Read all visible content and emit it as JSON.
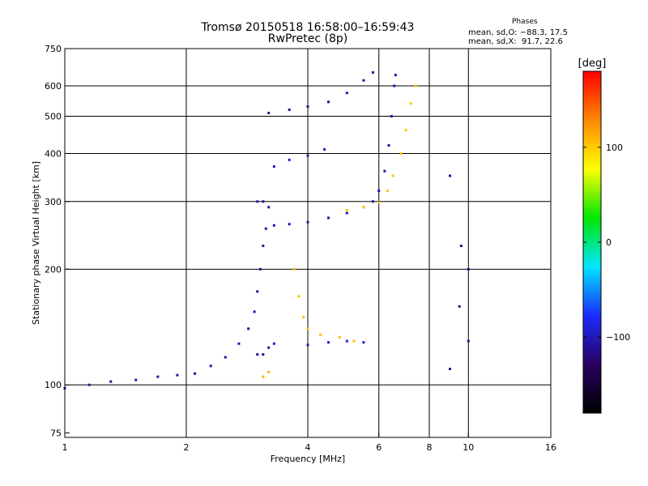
{
  "chart_data": {
    "type": "scatter",
    "title": "Tromsø 20150518 16:58:00–16:59:43",
    "subtitle": "RwPretec (8p)",
    "xlabel": "Frequency [MHz]",
    "ylabel": "Stationary phase Virtual Height [km]",
    "xscale": "log",
    "yscale": "log",
    "xlim": [
      1,
      16
    ],
    "ylim": [
      73,
      750
    ],
    "x_ticks": [
      1,
      2,
      4,
      6,
      8,
      10,
      16
    ],
    "x_tick_labels": [
      "1",
      "2",
      "4",
      "6",
      "8",
      "10",
      "16"
    ],
    "x_grid": [
      2,
      4,
      6,
      8,
      10
    ],
    "y_ticks": [
      75,
      100,
      200,
      300,
      400,
      500,
      600,
      750
    ],
    "y_tick_labels": [
      "75",
      "100",
      "200",
      "300",
      "400",
      "500",
      "600",
      "750"
    ],
    "y_grid": [
      100,
      200,
      300,
      400,
      500,
      600
    ],
    "grid": true,
    "colorbar": {
      "label": "[deg]",
      "ticks": [
        100,
        0,
        -100
      ],
      "tick_labels": [
        "100",
        "0",
        "−100"
      ],
      "range": [
        -180,
        180
      ],
      "colors": [
        "#000000",
        "#2a0060",
        "#1a2cff",
        "#00e6ff",
        "#00e600",
        "#ffff00",
        "#ff8800",
        "#ff0000"
      ]
    },
    "phases": {
      "header": "Phases",
      "o_line": "mean, sd,O: −88.3, 17.5",
      "x_line": "mean, sd,X:  91.7, 22.6"
    },
    "series": [
      {
        "phase": -105,
        "points": [
          [
            1.0,
            98
          ],
          [
            1.15,
            100
          ],
          [
            1.3,
            102
          ],
          [
            1.5,
            103
          ],
          [
            1.7,
            105
          ],
          [
            1.9,
            106
          ],
          [
            2.1,
            107
          ],
          [
            2.3,
            112
          ],
          [
            2.5,
            118
          ],
          [
            2.7,
            128
          ],
          [
            2.85,
            140
          ],
          [
            2.95,
            155
          ],
          [
            3.0,
            175
          ],
          [
            3.05,
            200
          ],
          [
            3.1,
            230
          ],
          [
            3.15,
            255
          ],
          [
            3.3,
            260
          ],
          [
            3.6,
            262
          ],
          [
            4.0,
            265
          ],
          [
            4.5,
            272
          ],
          [
            5.0,
            280
          ],
          [
            5.5,
            290
          ],
          [
            5.8,
            300
          ],
          [
            6.0,
            320
          ],
          [
            6.2,
            360
          ],
          [
            6.35,
            420
          ],
          [
            6.45,
            500
          ],
          [
            6.55,
            600
          ],
          [
            6.6,
            640
          ]
        ]
      },
      {
        "phase": -110,
        "points": [
          [
            3.0,
            120
          ],
          [
            3.0,
            300
          ],
          [
            3.1,
            120
          ],
          [
            3.1,
            300
          ],
          [
            3.2,
            125
          ],
          [
            3.2,
            290
          ]
        ]
      },
      {
        "phase": -95,
        "points": [
          [
            3.3,
            128
          ],
          [
            4.0,
            127
          ],
          [
            4.5,
            129
          ],
          [
            5.0,
            130
          ],
          [
            5.5,
            129
          ]
        ]
      },
      {
        "phase": -105,
        "points": [
          [
            3.2,
            510
          ],
          [
            3.6,
            520
          ],
          [
            4.0,
            530
          ],
          [
            4.5,
            545
          ],
          [
            5.0,
            575
          ],
          [
            5.5,
            620
          ],
          [
            5.8,
            650
          ]
        ]
      },
      {
        "phase": -100,
        "points": [
          [
            3.3,
            370
          ],
          [
            3.6,
            385
          ],
          [
            4.0,
            395
          ],
          [
            4.4,
            410
          ]
        ]
      },
      {
        "phase": 100,
        "points": [
          [
            5.0,
            285
          ],
          [
            5.5,
            290
          ],
          [
            6.0,
            298
          ],
          [
            6.3,
            320
          ],
          [
            6.5,
            350
          ],
          [
            6.8,
            400
          ],
          [
            7.0,
            460
          ],
          [
            7.2,
            540
          ],
          [
            7.4,
            600
          ]
        ]
      },
      {
        "phase": 105,
        "points": [
          [
            3.7,
            200
          ],
          [
            3.8,
            170
          ],
          [
            3.9,
            150
          ],
          [
            4.0,
            140
          ],
          [
            4.3,
            135
          ],
          [
            4.8,
            133
          ],
          [
            5.2,
            130
          ]
        ]
      },
      {
        "phase": 110,
        "points": [
          [
            3.1,
            105
          ],
          [
            3.2,
            108
          ]
        ]
      },
      {
        "phase": -115,
        "points": [
          [
            9.0,
            350
          ],
          [
            9.6,
            230
          ],
          [
            10.0,
            200
          ],
          [
            9.5,
            160
          ],
          [
            10.0,
            130
          ],
          [
            9.0,
            110
          ]
        ]
      }
    ]
  }
}
